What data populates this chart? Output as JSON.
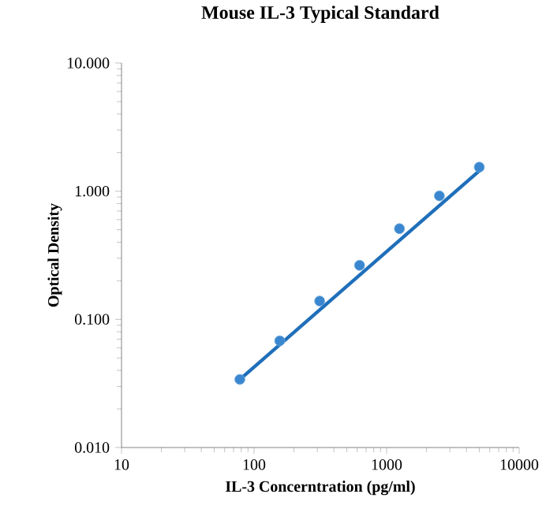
{
  "chart_data": {
    "type": "scatter",
    "title": "Mouse IL-3 Typical Standard",
    "xlabel": "IL-3 Concerntration (pg/ml)",
    "ylabel": "Optical Density",
    "log": "xy",
    "grid": false,
    "xlim": [
      10,
      10000
    ],
    "ylim": [
      0.01,
      10
    ],
    "xticks": [
      10,
      100,
      1000,
      10000
    ],
    "yticks": [
      {
        "value": 0.01,
        "label": "0.010"
      },
      {
        "value": 0.1,
        "label": "0.100"
      },
      {
        "value": 1,
        "label": "1.000"
      },
      {
        "value": 10,
        "label": "10.000"
      }
    ],
    "series": [
      {
        "type": "scatter",
        "color": "#3a87cf",
        "marker": "circle",
        "x": [
          78.125,
          156.25,
          312.5,
          625,
          1250,
          2500,
          5000
        ],
        "values": [
          0.034,
          0.068,
          0.139,
          0.264,
          0.51,
          0.92,
          1.54
        ]
      },
      {
        "type": "line",
        "color": "#1f6fba",
        "marker": "none",
        "line_style": "solid",
        "x": [
          78.125,
          5000
        ],
        "values": [
          0.034,
          1.44
        ]
      }
    ]
  }
}
